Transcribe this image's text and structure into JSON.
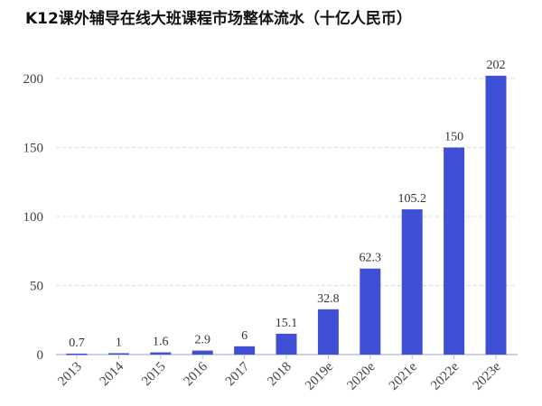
{
  "chart_data": {
    "type": "bar",
    "title": "K12课外辅导在线大班课程市场整体流水（十亿人民币）",
    "xlabel": "",
    "ylabel": "",
    "categories": [
      "2013",
      "2014",
      "2015",
      "2016",
      "2017",
      "2018",
      "2019e",
      "2020e",
      "2021e",
      "2022e",
      "2023e"
    ],
    "values": [
      0.7,
      1,
      1.6,
      2.9,
      6,
      15.1,
      32.8,
      62.3,
      105.2,
      150,
      202
    ],
    "data_labels": [
      "0.7",
      "1",
      "1.6",
      "2.9",
      "6",
      "15.1",
      "32.8",
      "62.3",
      "105.2",
      "150",
      "202"
    ],
    "ylim": [
      0,
      200
    ],
    "yticks": [
      "0",
      "50",
      "100",
      "150",
      "200"
    ],
    "grid": true,
    "bar_color": "#3f4fd6"
  }
}
